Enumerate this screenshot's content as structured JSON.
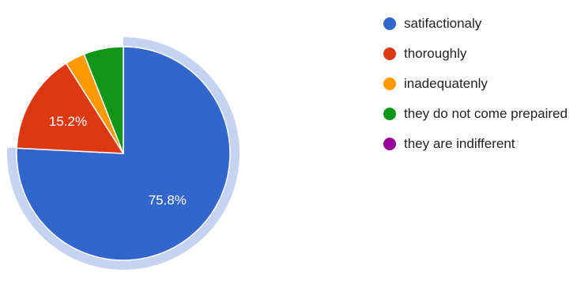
{
  "chart_data": {
    "type": "pie",
    "categories": [
      "satifactionaly",
      "thoroughly",
      "inadequatenly",
      "they do not come prepaired",
      "they are indifferent"
    ],
    "values": [
      75.8,
      15.2,
      3.0,
      6.0,
      0.0
    ],
    "slice_labels": [
      "75.8%",
      "15.2%",
      "",
      "",
      ""
    ],
    "colors": [
      "#3366cc",
      "#dc3912",
      "#ff9900",
      "#109618",
      "#990099"
    ],
    "highlight_color": "#c5d3f0",
    "highlighted_slice": "satifactionaly",
    "legend_position": "right"
  }
}
